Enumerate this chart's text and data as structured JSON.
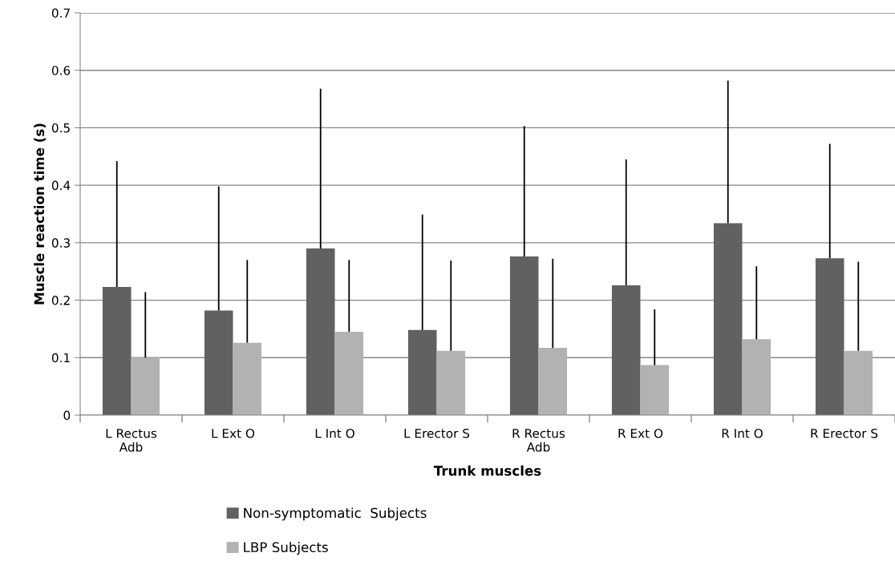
{
  "chart_data": {
    "type": "bar",
    "xlabel": "Trunk muscles",
    "ylabel": "Muscle reaction time (s)",
    "categories": [
      "L Rectus\nAdb",
      "L Ext O",
      "L Int O",
      "L Erector S",
      "R Rectus\nAdb",
      "R Ext O",
      "R Int O",
      "R Erector S"
    ],
    "series": [
      {
        "name": "Non-symptomatic  Subjects",
        "color": "#616161",
        "values": [
          0.223,
          0.182,
          0.29,
          0.148,
          0.276,
          0.226,
          0.334,
          0.273
        ],
        "errors": [
          [
            0.223,
            0.442
          ],
          [
            0.182,
            0.398
          ],
          [
            0.29,
            0.568
          ],
          [
            0.148,
            0.349
          ],
          [
            0.276,
            0.503
          ],
          [
            0.226,
            0.445
          ],
          [
            0.334,
            0.582
          ],
          [
            0.273,
            0.472
          ]
        ]
      },
      {
        "name": "LBP Subjects",
        "color": "#b2b2b2",
        "values": [
          0.1,
          0.126,
          0.145,
          0.112,
          0.117,
          0.087,
          0.132,
          0.112
        ],
        "errors": [
          [
            0.1,
            0.214
          ],
          [
            0.126,
            0.27
          ],
          [
            0.145,
            0.27
          ],
          [
            0.112,
            0.269
          ],
          [
            0.117,
            0.272
          ],
          [
            0.087,
            0.184
          ],
          [
            0.132,
            0.259
          ],
          [
            0.112,
            0.267
          ]
        ]
      }
    ],
    "ylim": [
      0,
      0.7
    ],
    "yticks": [
      0,
      0.1,
      0.2,
      0.3,
      0.4,
      0.5,
      0.6,
      0.7
    ],
    "grid": "y",
    "legend": "bottom"
  }
}
